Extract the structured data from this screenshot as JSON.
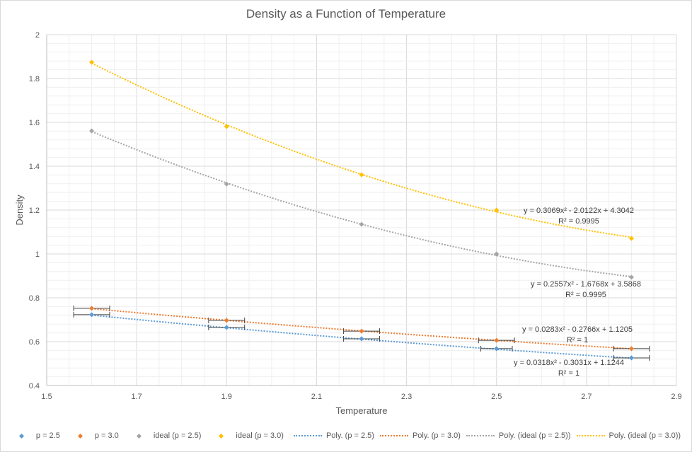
{
  "chart_data": {
    "type": "scatter",
    "title": "Density as a Function of Temperature",
    "xlabel": "Temperature",
    "ylabel": "Density",
    "xlim": [
      1.5,
      2.9
    ],
    "ylim": [
      0.4,
      2.0
    ],
    "x_ticks": [
      "1.5",
      "1.7",
      "1.9",
      "2.1",
      "2.3",
      "2.5",
      "2.7",
      "2.9"
    ],
    "y_ticks": [
      "0.4",
      "0.6",
      "0.8",
      "1",
      "1.2",
      "1.4",
      "1.6",
      "1.8",
      "2"
    ],
    "grid": true,
    "legend_position": "bottom",
    "series": [
      {
        "name": "p = 2.5",
        "color": "#5b9bd5",
        "x": [
          1.6,
          1.9,
          2.2,
          2.5,
          2.8
        ],
        "y": [
          0.723,
          0.665,
          0.613,
          0.568,
          0.526
        ],
        "x_error": [
          0.04,
          0.04,
          0.04,
          0.035,
          0.04
        ]
      },
      {
        "name": "p = 3.0",
        "color": "#ed7d31",
        "x": [
          1.6,
          1.9,
          2.2,
          2.5,
          2.8
        ],
        "y": [
          0.752,
          0.697,
          0.648,
          0.606,
          0.568
        ],
        "x_error": [
          0.04,
          0.04,
          0.04,
          0.04,
          0.04
        ]
      },
      {
        "name": "ideal (p = 2.5)",
        "color": "#a5a5a5",
        "x": [
          1.6,
          1.9,
          2.2,
          2.5,
          2.8
        ],
        "y": [
          1.561,
          1.319,
          1.135,
          1.0,
          0.894
        ]
      },
      {
        "name": "ideal (p = 3.0)",
        "color": "#ffc000",
        "x": [
          1.6,
          1.9,
          2.2,
          2.5,
          2.8
        ],
        "y": [
          1.874,
          1.581,
          1.361,
          1.2,
          1.071
        ]
      }
    ],
    "trendlines": [
      {
        "name": "Poly. (p = 2.5)",
        "color": "#5b9bd5",
        "coef": [
          0.0318,
          -0.3031,
          1.1244
        ],
        "equation": "y = 0.0318x² - 0.3031x + 1.1244",
        "r2": "R² = 1"
      },
      {
        "name": "Poly. (p = 3.0)",
        "color": "#ed7d31",
        "coef": [
          0.0283,
          -0.2766,
          1.1205
        ],
        "equation": "y = 0.0283x² - 0.2766x + 1.1205",
        "r2": "R² = 1"
      },
      {
        "name": "Poly. (ideal (p = 2.5))",
        "color": "#a5a5a5",
        "coef": [
          0.2557,
          -1.6768,
          3.5868
        ],
        "equation": "y = 0.2557x² - 1.6768x + 3.5868",
        "r2": "R² = 0.9995"
      },
      {
        "name": "Poly. (ideal (p = 3.0))",
        "color": "#ffc000",
        "coef": [
          0.3069,
          -2.0122,
          4.3042
        ],
        "equation": "y = 0.3069x² - 2.0122x + 4.3042",
        "r2": "R² = 0.9995"
      }
    ]
  }
}
